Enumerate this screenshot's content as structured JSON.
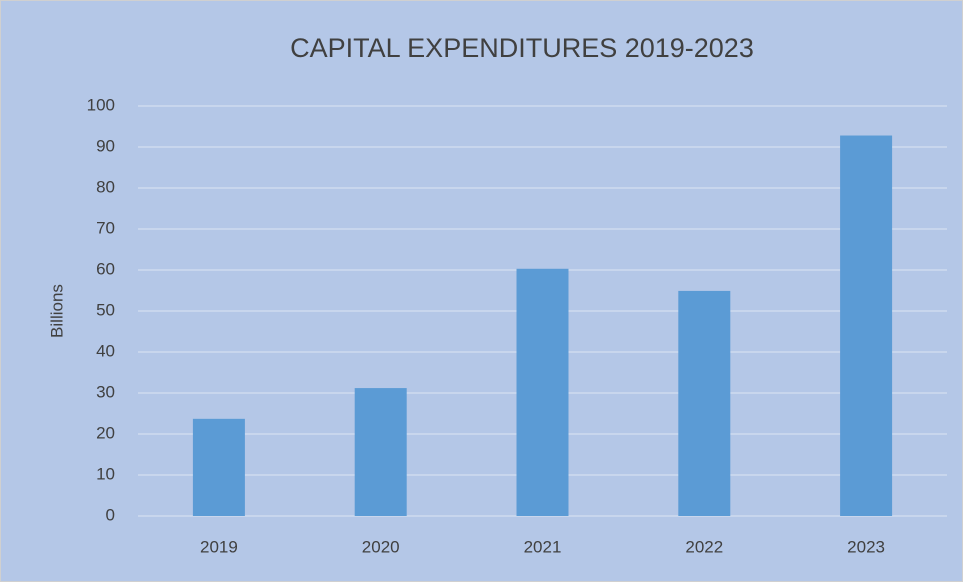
{
  "chart_data": {
    "type": "bar",
    "title": "CAPITAL EXPENDITURES 2019-2023",
    "ylabel": "Billions",
    "categories": [
      "2019",
      "2020",
      "2021",
      "2022",
      "2023"
    ],
    "values": [
      23.7,
      31.2,
      60.3,
      54.9,
      92.8
    ],
    "color": "#5b9bd5",
    "ylim": [
      0,
      100
    ],
    "yticks": [
      0,
      10,
      20,
      30,
      40,
      50,
      60,
      70,
      80,
      90,
      100
    ],
    "grid": true
  }
}
